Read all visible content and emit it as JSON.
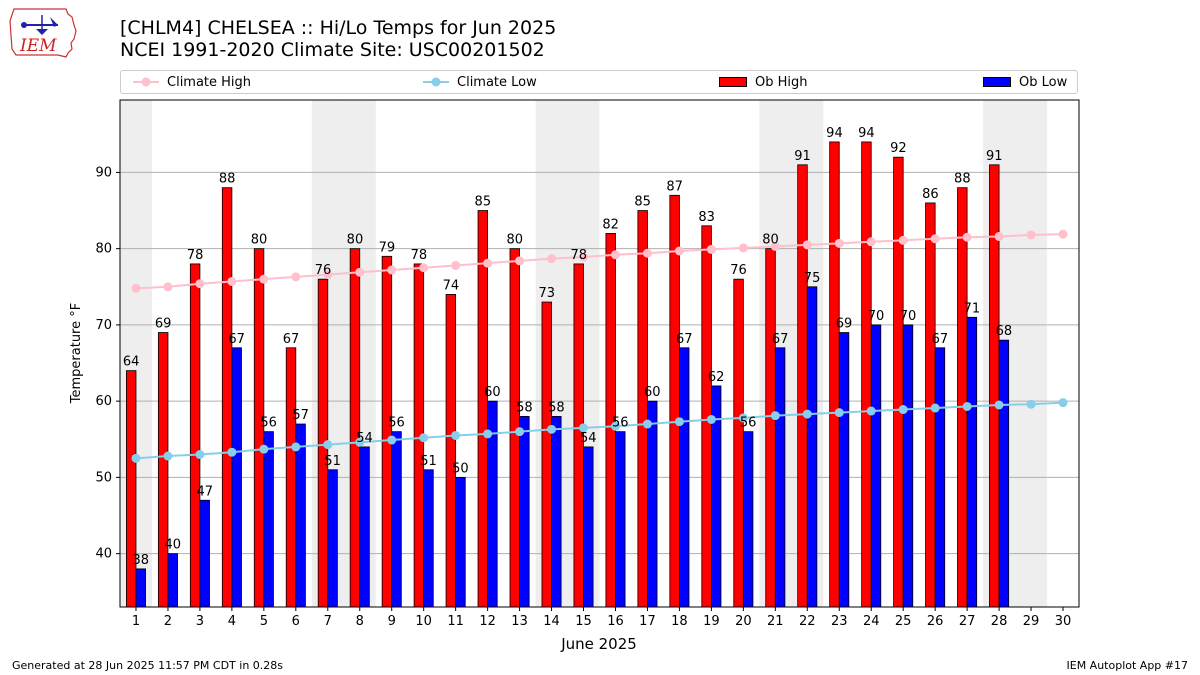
{
  "logo": {
    "text": "IEM"
  },
  "footer": {
    "left": "Generated at 28 Jun 2025 11:57 PM CDT in 0.28s",
    "right": "IEM Autoplot App #17"
  },
  "colors": {
    "ob_high": "#ff0000",
    "ob_low": "#0000ff",
    "climate_high": "#ffc0cb",
    "climate_low": "#87ceeb",
    "weekend_band": "#eeeeee"
  },
  "chart_data": {
    "type": "bar",
    "title": "[CHLM4] CHELSEA :: Hi/Lo Temps for Jun 2025",
    "subtitle": "NCEI 1991-2020 Climate Site: USC00201502",
    "xlabel": "June 2025",
    "ylabel": "Temperature °F",
    "x": [
      1,
      2,
      3,
      4,
      5,
      6,
      7,
      8,
      9,
      10,
      11,
      12,
      13,
      14,
      15,
      16,
      17,
      18,
      19,
      20,
      21,
      22,
      23,
      24,
      25,
      26,
      27,
      28,
      29,
      30
    ],
    "ylim": [
      33,
      99.5
    ],
    "yticks": [
      40,
      50,
      60,
      70,
      80,
      90
    ],
    "grid": true,
    "legend_position": "top",
    "weekend_days": [
      1,
      7,
      8,
      14,
      15,
      21,
      22,
      28,
      29
    ],
    "series": [
      {
        "name": "Climate High",
        "kind": "line",
        "values": [
          74.8,
          75.0,
          75.4,
          75.7,
          76.0,
          76.3,
          76.6,
          76.9,
          77.2,
          77.5,
          77.8,
          78.1,
          78.4,
          78.7,
          78.9,
          79.2,
          79.4,
          79.7,
          79.9,
          80.1,
          80.3,
          80.5,
          80.7,
          80.9,
          81.1,
          81.3,
          81.5,
          81.6,
          81.8,
          81.9
        ]
      },
      {
        "name": "Climate Low",
        "kind": "line",
        "values": [
          52.5,
          52.8,
          53.0,
          53.3,
          53.7,
          54.0,
          54.3,
          54.6,
          54.9,
          55.2,
          55.5,
          55.7,
          56.0,
          56.3,
          56.5,
          56.7,
          57.0,
          57.3,
          57.6,
          57.8,
          58.1,
          58.3,
          58.5,
          58.7,
          58.9,
          59.1,
          59.3,
          59.5,
          59.6,
          59.8
        ]
      },
      {
        "name": "Ob High",
        "kind": "bar",
        "values": [
          64,
          69,
          78,
          88,
          80,
          67,
          76,
          80,
          79,
          78,
          74,
          85,
          80,
          73,
          78,
          82,
          85,
          87,
          83,
          76,
          80,
          91,
          94,
          94,
          92,
          86,
          88,
          91,
          null,
          null
        ]
      },
      {
        "name": "Ob Low",
        "kind": "bar",
        "values": [
          38,
          40,
          47,
          67,
          56,
          57,
          51,
          54,
          56,
          51,
          50,
          60,
          58,
          58,
          54,
          56,
          60,
          67,
          62,
          56,
          67,
          75,
          69,
          70,
          70,
          67,
          71,
          68,
          null,
          null
        ]
      }
    ]
  }
}
